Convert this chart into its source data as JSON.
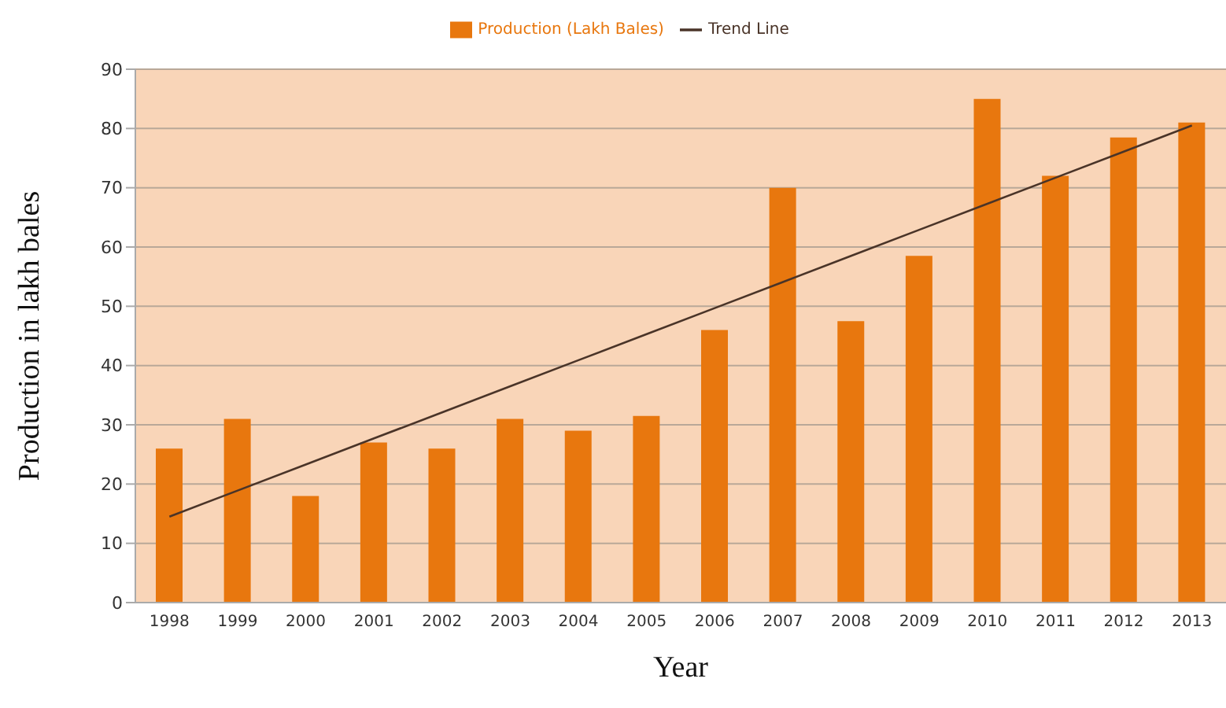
{
  "chart_data": {
    "type": "bar",
    "xlabel": "Year",
    "ylabel": "Production in lakh bales",
    "categories": [
      "1998",
      "1999",
      "2000",
      "2001",
      "2002",
      "2003",
      "2004",
      "2005",
      "2006",
      "2007",
      "2008",
      "2009",
      "2010",
      "2011",
      "2012",
      "2013"
    ],
    "series": [
      {
        "name": "Production (Lakh Bales)",
        "color": "#e8770e",
        "values": [
          26,
          31,
          18,
          27,
          26,
          31,
          29,
          31.5,
          46,
          70,
          47.5,
          58.5,
          85,
          72,
          78.5,
          81
        ]
      },
      {
        "name": "Trend Line",
        "type": "line",
        "color": "#4a3428",
        "values": [
          14.5,
          18.9,
          23.3,
          27.7,
          32.1,
          36.5,
          40.9,
          45.3,
          49.7,
          54.1,
          58.5,
          62.9,
          67.3,
          71.7,
          76.1,
          80.5
        ]
      }
    ],
    "ylim": [
      0,
      90
    ],
    "yticks": [
      0,
      10,
      20,
      30,
      40,
      50,
      60,
      70,
      80,
      90
    ],
    "grid": "y",
    "legend": "top"
  }
}
